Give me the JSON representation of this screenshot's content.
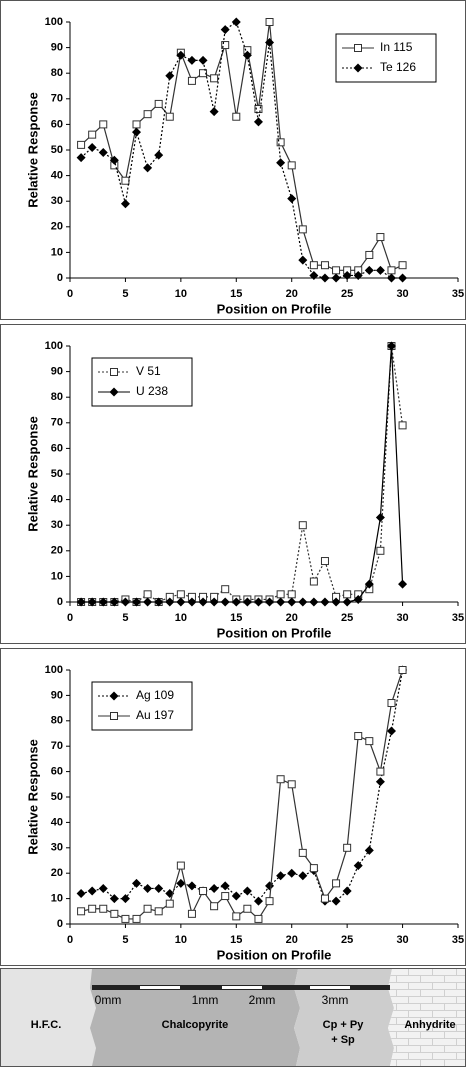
{
  "chart_data": [
    {
      "type": "line",
      "x_label": "Position on Profile",
      "y_label": "Relative Response",
      "x": [
        1,
        2,
        3,
        4,
        5,
        6,
        7,
        8,
        9,
        10,
        11,
        12,
        13,
        14,
        15,
        16,
        17,
        18,
        19,
        20,
        21,
        22,
        23,
        24,
        25,
        26,
        27,
        28,
        29,
        30
      ],
      "series": [
        {
          "name": "In 115",
          "color": "#333333",
          "marker": "square",
          "dash": "solid",
          "values": [
            52,
            56,
            60,
            44,
            38,
            60,
            64,
            68,
            63,
            88,
            77,
            80,
            78,
            91,
            63,
            89,
            66,
            100,
            53,
            44,
            19,
            5,
            5,
            3,
            3,
            3,
            9,
            16,
            3,
            5
          ]
        },
        {
          "name": "Te 126",
          "color": "#000000",
          "marker": "diamond",
          "dash": "dotted",
          "values": [
            47,
            51,
            49,
            46,
            29,
            57,
            43,
            48,
            79,
            87,
            85,
            85,
            65,
            97,
            100,
            87,
            61,
            92,
            45,
            31,
            7,
            1,
            0,
            0,
            1,
            1,
            3,
            3,
            0,
            0
          ]
        }
      ],
      "xlim": [
        0,
        35
      ],
      "xticks": [
        0,
        5,
        10,
        15,
        20,
        25,
        30,
        35
      ],
      "ylim": [
        0,
        100
      ],
      "yticks": [
        0,
        10,
        20,
        30,
        40,
        50,
        60,
        70,
        80,
        90,
        100
      ],
      "legend": "upper right"
    },
    {
      "type": "line",
      "x_label": "Position on Profile",
      "y_label": "Relative Response",
      "x": [
        1,
        2,
        3,
        4,
        5,
        6,
        7,
        8,
        9,
        10,
        11,
        12,
        13,
        14,
        15,
        16,
        17,
        18,
        19,
        20,
        21,
        22,
        23,
        24,
        25,
        26,
        27,
        28,
        29,
        30
      ],
      "series": [
        {
          "name": "V 51",
          "color": "#333333",
          "marker": "square",
          "dash": "dotted",
          "values": [
            0,
            0,
            0,
            0,
            1,
            0,
            3,
            0,
            2,
            3,
            2,
            2,
            2,
            5,
            1,
            1,
            1,
            1,
            3,
            3,
            30,
            8,
            16,
            2,
            3,
            3,
            5,
            20,
            100,
            69
          ]
        },
        {
          "name": "U 238",
          "color": "#000000",
          "marker": "diamond",
          "dash": "solid",
          "values": [
            0,
            0,
            0,
            0,
            0,
            0,
            0,
            0,
            0,
            0,
            0,
            0,
            0,
            0,
            0,
            0,
            0,
            0,
            0,
            0,
            0,
            0,
            0,
            0,
            0,
            1,
            7,
            33,
            100,
            7
          ]
        }
      ],
      "xlim": [
        0,
        35
      ],
      "xticks": [
        0,
        5,
        10,
        15,
        20,
        25,
        30,
        35
      ],
      "ylim": [
        0,
        100
      ],
      "yticks": [
        0,
        10,
        20,
        30,
        40,
        50,
        60,
        70,
        80,
        90,
        100
      ],
      "legend": "upper left"
    },
    {
      "type": "line",
      "x_label": "Position on Profile",
      "y_label": "Relative Response",
      "x": [
        1,
        2,
        3,
        4,
        5,
        6,
        7,
        8,
        9,
        10,
        11,
        12,
        13,
        14,
        15,
        16,
        17,
        18,
        19,
        20,
        21,
        22,
        23,
        24,
        25,
        26,
        27,
        28,
        29,
        30
      ],
      "series": [
        {
          "name": "Ag 109",
          "color": "#000000",
          "marker": "diamond",
          "dash": "dotted",
          "values": [
            12,
            13,
            14,
            10,
            10,
            16,
            14,
            14,
            12,
            16,
            15,
            13,
            14,
            15,
            11,
            13,
            9,
            15,
            19,
            20,
            19,
            21,
            9,
            9,
            13,
            23,
            29,
            56,
            76,
            100
          ]
        },
        {
          "name": "Au 197",
          "color": "#333333",
          "marker": "square",
          "dash": "solid",
          "values": [
            5,
            6,
            6,
            4,
            2,
            2,
            6,
            5,
            8,
            23,
            4,
            13,
            7,
            11,
            3,
            6,
            2,
            9,
            57,
            55,
            28,
            22,
            10,
            16,
            30,
            74,
            72,
            60,
            87,
            100
          ]
        }
      ],
      "xlim": [
        0,
        35
      ],
      "xticks": [
        0,
        5,
        10,
        15,
        20,
        25,
        30,
        35
      ],
      "ylim": [
        0,
        100
      ],
      "yticks": [
        0,
        10,
        20,
        30,
        40,
        50,
        60,
        70,
        80,
        90,
        100
      ],
      "legend": "upper left"
    }
  ],
  "diagram": {
    "scale": [
      "0mm",
      "1mm",
      "2mm",
      "3mm"
    ],
    "zones": [
      {
        "label": [
          "H.F.C."
        ]
      },
      {
        "label": [
          "Chalcopyrite"
        ]
      },
      {
        "label": [
          "Cp + Py",
          "+ Sp"
        ]
      },
      {
        "label": [
          "Anhydrite"
        ]
      }
    ]
  }
}
